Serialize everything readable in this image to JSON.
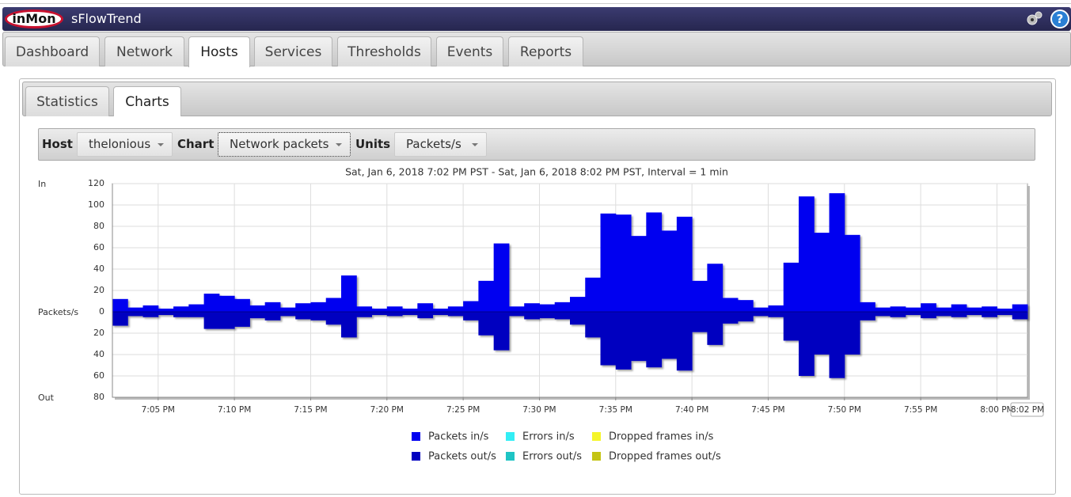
{
  "header": {
    "logo": "inMon",
    "app_name": "sFlowTrend",
    "help": "?"
  },
  "tabs": [
    "Dashboard",
    "Network",
    "Hosts",
    "Services",
    "Thresholds",
    "Events",
    "Reports"
  ],
  "active_tab": "Hosts",
  "subtabs": [
    "Statistics",
    "Charts"
  ],
  "active_subtab": "Charts",
  "toolbar": {
    "host_label": "Host",
    "host_value": "thelonious",
    "chart_label": "Chart",
    "chart_value": "Network packets",
    "units_label": "Units",
    "units_value": "Packets/s"
  },
  "chart_data": {
    "type": "step_area",
    "title": "Sat, Jan 6, 2018 7:02 PM PST - Sat, Jan 6, 2018 8:02 PM PST, Interval = 1 min",
    "in_label": "In",
    "out_label": "Out",
    "y_label": "Packets/s",
    "x": [
      "7:02 PM",
      "7:03 PM",
      "7:04 PM",
      "7:05 PM",
      "7:06 PM",
      "7:07 PM",
      "7:08 PM",
      "7:09 PM",
      "7:10 PM",
      "7:11 PM",
      "7:12 PM",
      "7:13 PM",
      "7:14 PM",
      "7:15 PM",
      "7:16 PM",
      "7:17 PM",
      "7:18 PM",
      "7:19 PM",
      "7:20 PM",
      "7:21 PM",
      "7:22 PM",
      "7:23 PM",
      "7:24 PM",
      "7:25 PM",
      "7:26 PM",
      "7:27 PM",
      "7:28 PM",
      "7:29 PM",
      "7:30 PM",
      "7:31 PM",
      "7:32 PM",
      "7:33 PM",
      "7:34 PM",
      "7:35 PM",
      "7:36 PM",
      "7:37 PM",
      "7:38 PM",
      "7:39 PM",
      "7:40 PM",
      "7:41 PM",
      "7:42 PM",
      "7:43 PM",
      "7:44 PM",
      "7:45 PM",
      "7:46 PM",
      "7:47 PM",
      "7:48 PM",
      "7:49 PM",
      "7:50 PM",
      "7:51 PM",
      "7:52 PM",
      "7:53 PM",
      "7:54 PM",
      "7:55 PM",
      "7:56 PM",
      "7:57 PM",
      "7:58 PM",
      "7:59 PM",
      "8:00 PM",
      "8:01 PM"
    ],
    "xlim": [
      "7:02 PM",
      "8:02 PM"
    ],
    "xticks": [
      "7:05 PM",
      "7:10 PM",
      "7:15 PM",
      "7:20 PM",
      "7:25 PM",
      "7:30 PM",
      "7:35 PM",
      "7:40 PM",
      "7:45 PM",
      "7:50 PM",
      "7:55 PM",
      "8:00 PM"
    ],
    "ylim": [
      -80,
      120
    ],
    "yticks": [
      120,
      100,
      80,
      60,
      40,
      20,
      0,
      {
        "value": -20,
        "label": "20"
      },
      {
        "value": -40,
        "label": "40"
      },
      {
        "value": -60,
        "label": "60"
      },
      {
        "value": -80,
        "label": "80"
      }
    ],
    "grid": true,
    "series": [
      {
        "name": "Packets in/s",
        "color": "#0000f0",
        "values": [
          12,
          4,
          6,
          3,
          5,
          7,
          17,
          15,
          12,
          6,
          9,
          4,
          8,
          9,
          13,
          34,
          5,
          3,
          5,
          3,
          8,
          3,
          5,
          10,
          29,
          64,
          5,
          8,
          7,
          9,
          14,
          32,
          92,
          91,
          71,
          93,
          76,
          89,
          29,
          45,
          13,
          11,
          4,
          6,
          46,
          108,
          74,
          111,
          72,
          9,
          4,
          5,
          4,
          8,
          4,
          7,
          4,
          5,
          3,
          7
        ]
      },
      {
        "name": "Packets out/s",
        "color": "#0000c0",
        "values": [
          -13,
          -4,
          -5,
          -3,
          -5,
          -5,
          -16,
          -16,
          -14,
          -6,
          -8,
          -4,
          -7,
          -8,
          -12,
          -24,
          -5,
          -3,
          -4,
          -3,
          -6,
          -3,
          -4,
          -8,
          -22,
          -36,
          -4,
          -7,
          -6,
          -7,
          -12,
          -24,
          -50,
          -54,
          -46,
          -52,
          -44,
          -55,
          -19,
          -31,
          -11,
          -9,
          -4,
          -5,
          -27,
          -60,
          -40,
          -62,
          -40,
          -8,
          -4,
          -5,
          -3,
          -6,
          -4,
          -5,
          -3,
          -5,
          -3,
          -7
        ]
      },
      {
        "name": "Errors in/s",
        "color": "#33eef5",
        "values": [
          0,
          0,
          0,
          0,
          0,
          0,
          0,
          0,
          0,
          0,
          0,
          0,
          0,
          0,
          0,
          0,
          0,
          0,
          0,
          0,
          0,
          0,
          0,
          0,
          0,
          0,
          0,
          0,
          0,
          0,
          0,
          0,
          0,
          0,
          0,
          0,
          0,
          0,
          0,
          0,
          0,
          0,
          0,
          0,
          0,
          0,
          0,
          0,
          0,
          0,
          0,
          0,
          0,
          0,
          0,
          0,
          0,
          0,
          0,
          0
        ]
      },
      {
        "name": "Errors out/s",
        "color": "#1fc4c4",
        "values": [
          0,
          0,
          0,
          0,
          0,
          0,
          0,
          0,
          0,
          0,
          0,
          0,
          0,
          0,
          0,
          0,
          0,
          0,
          0,
          0,
          0,
          0,
          0,
          0,
          0,
          0,
          0,
          0,
          0,
          0,
          0,
          0,
          0,
          0,
          0,
          0,
          0,
          0,
          0,
          0,
          0,
          0,
          0,
          0,
          0,
          0,
          0,
          0,
          0,
          0,
          0,
          0,
          0,
          0,
          0,
          0,
          0,
          0,
          0,
          0
        ]
      },
      {
        "name": "Dropped frames in/s",
        "color": "#f5f52a",
        "values": [
          0,
          0,
          0,
          0,
          0,
          0,
          0,
          0,
          0,
          0,
          0,
          0,
          0,
          0,
          0,
          0,
          0,
          0,
          0,
          0,
          0,
          0,
          0,
          0,
          0,
          0,
          0,
          0,
          0,
          0,
          0,
          0,
          0,
          0,
          0,
          0,
          0,
          0,
          0,
          0,
          0,
          0,
          0,
          0,
          0,
          0,
          0,
          0,
          0,
          0,
          0,
          0,
          0,
          0,
          0,
          0,
          0,
          0,
          0,
          0
        ]
      },
      {
        "name": "Dropped frames out/s",
        "color": "#c4c414",
        "values": [
          0,
          0,
          0,
          0,
          0,
          0,
          0,
          0,
          0,
          0,
          0,
          0,
          0,
          0,
          0,
          0,
          0,
          0,
          0,
          0,
          0,
          0,
          0,
          0,
          0,
          0,
          0,
          0,
          0,
          0,
          0,
          0,
          0,
          0,
          0,
          0,
          0,
          0,
          0,
          0,
          0,
          0,
          0,
          0,
          0,
          0,
          0,
          0,
          0,
          0,
          0,
          0,
          0,
          0,
          0,
          0,
          0,
          0,
          0,
          0
        ]
      }
    ]
  }
}
